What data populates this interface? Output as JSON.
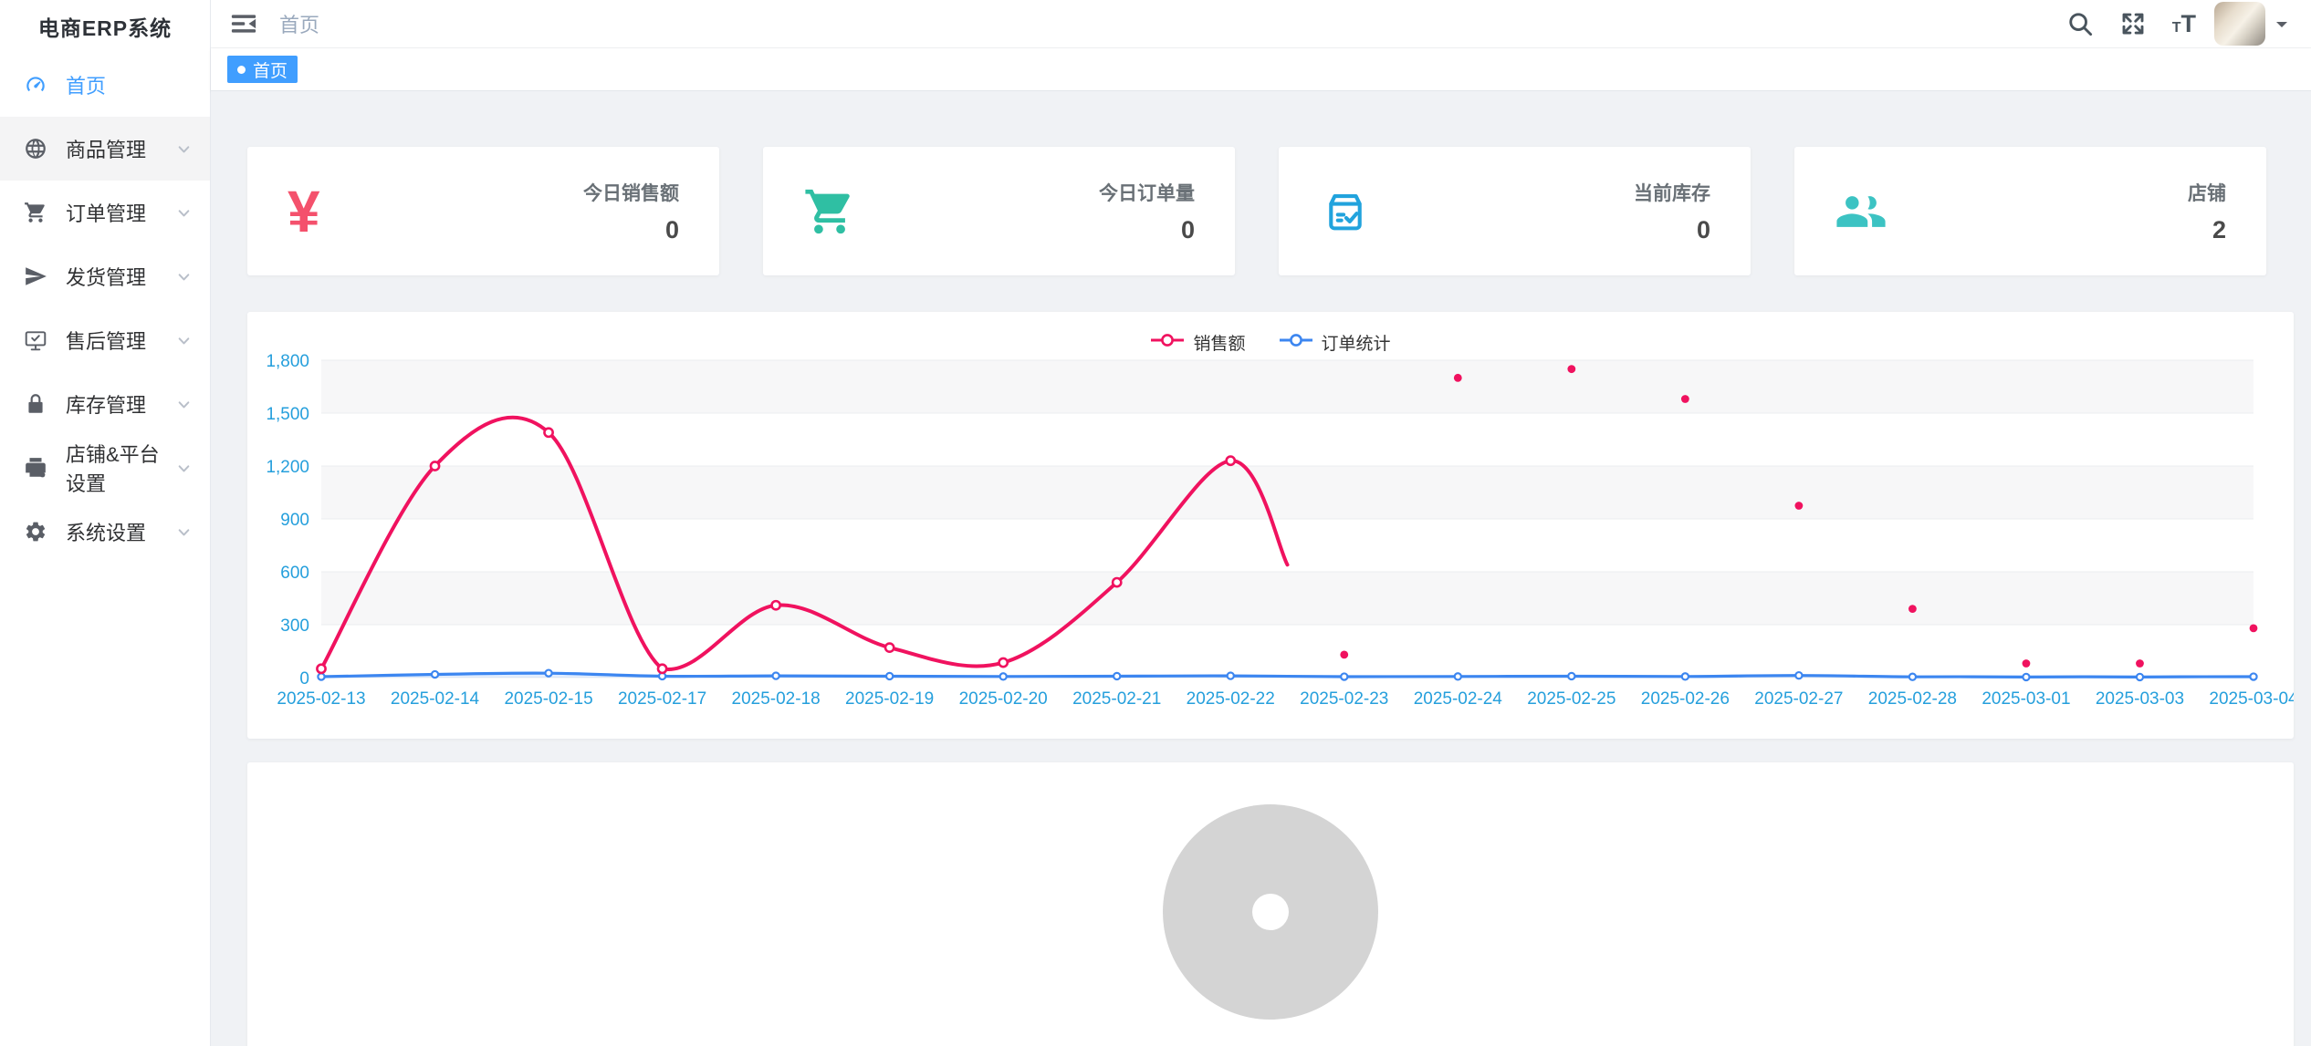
{
  "app": {
    "title": "电商ERP系统"
  },
  "sidebar": {
    "items": [
      {
        "label": "首页",
        "icon": "dashboard-icon",
        "active": true,
        "highlighted": false,
        "expandable": false
      },
      {
        "label": "商品管理",
        "icon": "globe-icon",
        "active": false,
        "highlighted": true,
        "expandable": true
      },
      {
        "label": "订单管理",
        "icon": "cart-icon",
        "active": false,
        "highlighted": false,
        "expandable": true
      },
      {
        "label": "发货管理",
        "icon": "send-icon",
        "active": false,
        "highlighted": false,
        "expandable": true
      },
      {
        "label": "售后管理",
        "icon": "aftersale-icon",
        "active": false,
        "highlighted": false,
        "expandable": true
      },
      {
        "label": "库存管理",
        "icon": "lock-icon",
        "active": false,
        "highlighted": false,
        "expandable": true
      },
      {
        "label": "店铺&平台设置",
        "icon": "shop-settings-icon",
        "active": false,
        "highlighted": false,
        "expandable": true
      },
      {
        "label": "系统设置",
        "icon": "gear-icon",
        "active": false,
        "highlighted": false,
        "expandable": true
      }
    ]
  },
  "navbar": {
    "breadcrumb": "首页"
  },
  "tags": [
    {
      "label": "首页",
      "active": true
    }
  ],
  "stats": [
    {
      "label": "今日销售额",
      "value": "0",
      "icon": "yen-icon",
      "color": "#f4516c"
    },
    {
      "label": "今日订单量",
      "value": "0",
      "icon": "cart-icon",
      "color": "#2fbfa3"
    },
    {
      "label": "当前库存",
      "value": "0",
      "icon": "box-icon",
      "color": "#21a3dd"
    },
    {
      "label": "店铺",
      "value": "2",
      "icon": "users-icon",
      "color": "#3cc3c3"
    }
  ],
  "chart_data": [
    {
      "type": "line",
      "title": "",
      "x": [
        "2025-02-13",
        "2025-02-14",
        "2025-02-15",
        "2025-02-17",
        "2025-02-18",
        "2025-02-19",
        "2025-02-20",
        "2025-02-21",
        "2025-02-22",
        "2025-02-23",
        "2025-02-24",
        "2025-02-25",
        "2025-02-26",
        "2025-02-27",
        "2025-02-28",
        "2025-03-01",
        "2025-03-03",
        "2025-03-04"
      ],
      "series": [
        {
          "name": "销售额",
          "color": "#f0125f",
          "values": [
            50,
            1200,
            1390,
            50,
            410,
            170,
            85,
            540,
            1230,
            130,
            1700,
            1750,
            1580,
            975,
            390,
            80,
            80,
            280
          ],
          "line_drawn_through_index": 8,
          "partial_segment_end": {
            "x_fraction_after_index": 0.5,
            "value": 640
          },
          "note": "line rendering caught mid-animation; points after 2025-02-22 shown as isolated dots"
        },
        {
          "name": "订单统计",
          "color": "#3c86f0",
          "values": [
            5,
            18,
            25,
            8,
            10,
            8,
            6,
            8,
            10,
            5,
            6,
            8,
            6,
            12,
            4,
            3,
            3,
            5
          ],
          "area_fill": "rgba(64,138,245,0.15)"
        }
      ],
      "ylim": [
        0,
        1800
      ],
      "yticks": [
        0,
        300,
        600,
        900,
        1200,
        1500,
        1800
      ],
      "xlabel": "",
      "ylabel": "",
      "legend": [
        "销售额",
        "订单统计"
      ],
      "legend_position": "top-center",
      "axis_label_color": "#259fdc",
      "grid": true,
      "split_area": "alternating gray bands #f7f7f8",
      "band_color": "#f7f7f8",
      "grid_color": "#ebedef"
    },
    {
      "type": "pie",
      "title": "",
      "values": [],
      "empty": true,
      "placeholder_color": "#d4d4d4"
    }
  ]
}
